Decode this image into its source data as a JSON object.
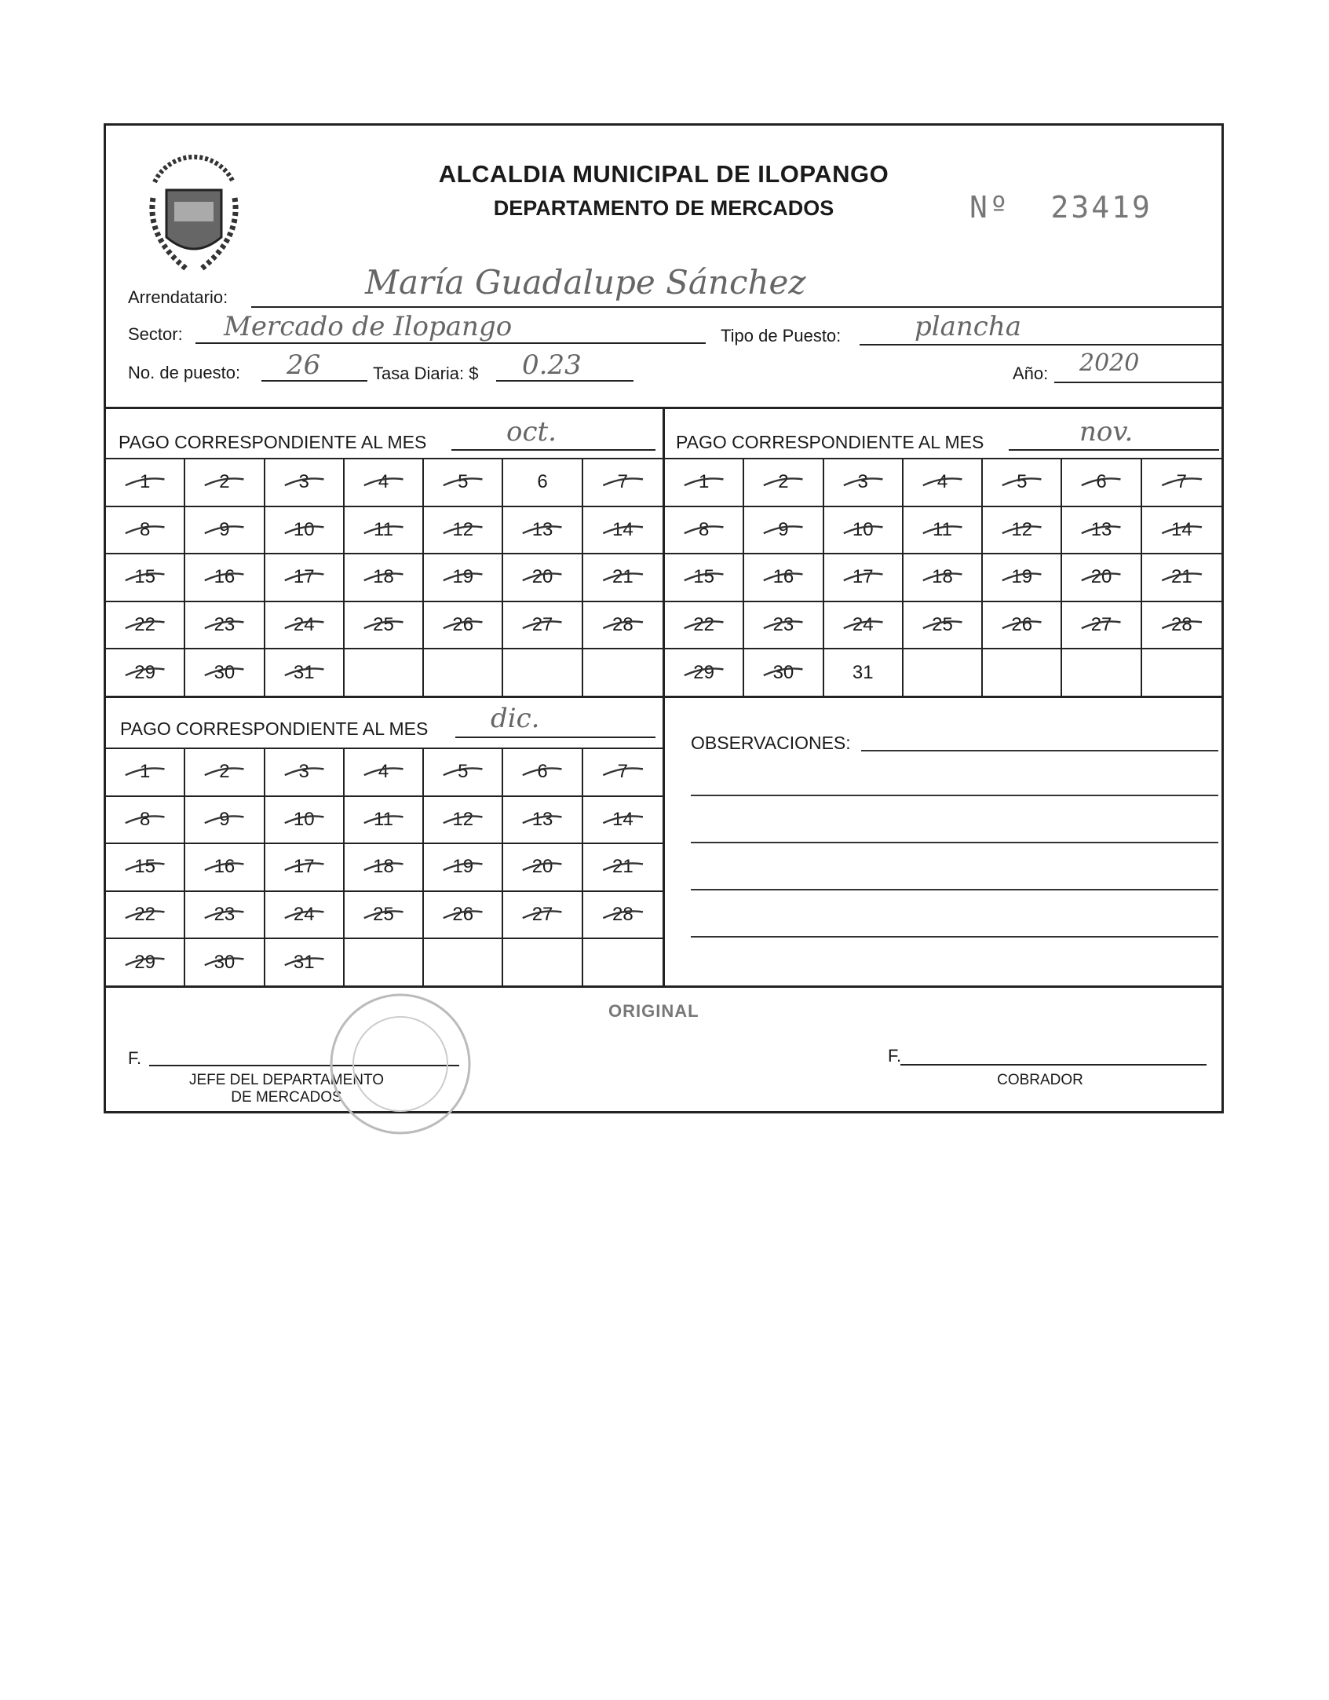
{
  "header": {
    "title": "ALCALDIA MUNICIPAL DE ILOPANGO",
    "subtitle": "DEPARTAMENTO DE MERCADOS",
    "number_label": "Nº",
    "number": "23419",
    "logo_text": "CIUDAD DE ILOPANGO · JUNIO 27 1971 · PATRIA · CULTURA · TRABAJO"
  },
  "fields": {
    "arrendatario_label": "Arrendatario:",
    "arrendatario_value": "María Guadalupe Sánchez",
    "sector_label": "Sector:",
    "sector_value": "Mercado de Ilopango",
    "tipo_label": "Tipo de Puesto:",
    "tipo_value": "plancha",
    "puesto_label": "No. de puesto:",
    "puesto_value": "26",
    "tasa_label": "Tasa Diaria: $",
    "tasa_value": "0.23",
    "anio_label": "Año:",
    "anio_value": "2020"
  },
  "months": [
    {
      "label": "PAGO CORRESPONDIENTE AL MES",
      "value": "oct.",
      "days": 31,
      "marked": [
        1,
        2,
        3,
        4,
        5,
        7,
        8,
        9,
        10,
        11,
        12,
        13,
        14,
        15,
        16,
        17,
        18,
        19,
        20,
        21,
        22,
        23,
        24,
        25,
        26,
        27,
        28,
        29,
        30,
        31
      ]
    },
    {
      "label": "PAGO CORRESPONDIENTE AL MES",
      "value": "nov.",
      "days": 31,
      "marked": [
        1,
        2,
        3,
        4,
        5,
        6,
        7,
        8,
        9,
        10,
        11,
        12,
        13,
        14,
        15,
        16,
        17,
        18,
        19,
        20,
        21,
        22,
        23,
        24,
        25,
        26,
        27,
        28,
        29,
        30
      ]
    },
    {
      "label": "PAGO CORRESPONDIENTE AL MES",
      "value": "dic.",
      "days": 31,
      "marked": [
        1,
        2,
        3,
        4,
        5,
        6,
        7,
        8,
        9,
        10,
        11,
        12,
        13,
        14,
        15,
        16,
        17,
        18,
        19,
        20,
        21,
        22,
        23,
        24,
        25,
        26,
        27,
        28,
        29,
        30,
        31
      ]
    }
  ],
  "observaciones_label": "OBSERVACIONES:",
  "footer": {
    "original": "ORIGINAL",
    "f_left": "F.",
    "jefe_line1": "JEFE DEL DEPARTAMENTO",
    "jefe_line2": "DE MERCADOS",
    "f_right": "F.",
    "cobrador": "COBRADOR"
  }
}
